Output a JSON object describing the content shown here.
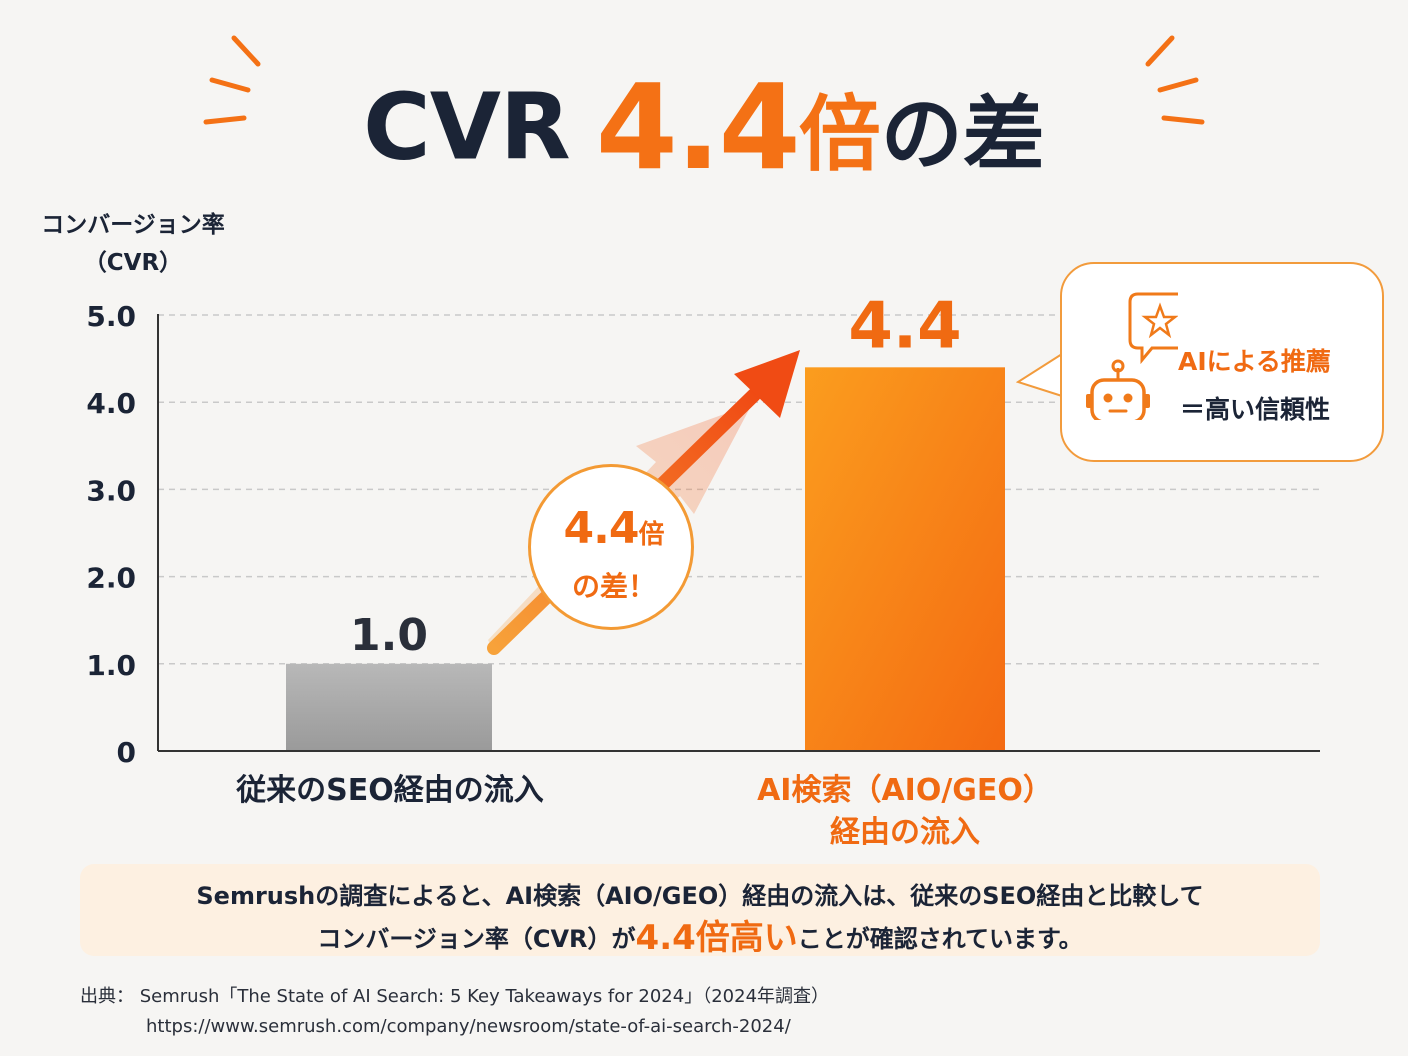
{
  "headline": {
    "cvr": "CVR",
    "number": "4.4",
    "bai": "倍",
    "sa": "の差"
  },
  "colors": {
    "navy": "#1b2436",
    "orange": "#f47115",
    "gray_bar": "#a5a5a5",
    "highlight_bg": "#fdf0e1"
  },
  "chart_data": {
    "type": "bar",
    "title": "CVR 4.4倍の差",
    "ylabel": "コンバージョン率（CVR）",
    "ylabel_lines": [
      "コンバージョン率",
      "（CVR）"
    ],
    "ylim": [
      0,
      5.0
    ],
    "yticks": [
      "0",
      "1.0",
      "2.0",
      "3.0",
      "4.0",
      "5.0"
    ],
    "ytick_values": [
      0,
      1,
      2,
      3,
      4,
      5
    ],
    "grid": true,
    "categories": [
      "従来のSEO経由の流入",
      "AI検索（AIO/GEO）経由の流入"
    ],
    "category_lines": [
      [
        "従来のSEO経由の流入"
      ],
      [
        "AI検索（AIO/GEO）",
        "経由の流入"
      ]
    ],
    "values": [
      1.0,
      4.4
    ],
    "value_labels": [
      "1.0",
      "4.4"
    ],
    "bar_colors": [
      "#a5a5a5",
      "#f57a10"
    ]
  },
  "annotations": {
    "bubble_top_num": "4.4",
    "bubble_top_bai": "倍",
    "bubble_bottom": "の差！",
    "callout_line1": "AIによる推薦",
    "callout_line2": "＝高い信頼性"
  },
  "summary": {
    "line1": "Semrushの調査によると、AI検索（AIO/GEO）経由の流入は、従来のSEO経由と比較して",
    "line2_pre": "コンバージョン率（CVR）が",
    "line2_highlight": "4.4倍高い",
    "line2_post": "ことが確認されています。"
  },
  "source": {
    "label": "出典：",
    "title": "Semrush「The State of AI Search: 5 Key Takeaways for 2024」（2024年調査）",
    "url": "https://www.semrush.com/company/newsroom/state-of-ai-search-2024/"
  }
}
